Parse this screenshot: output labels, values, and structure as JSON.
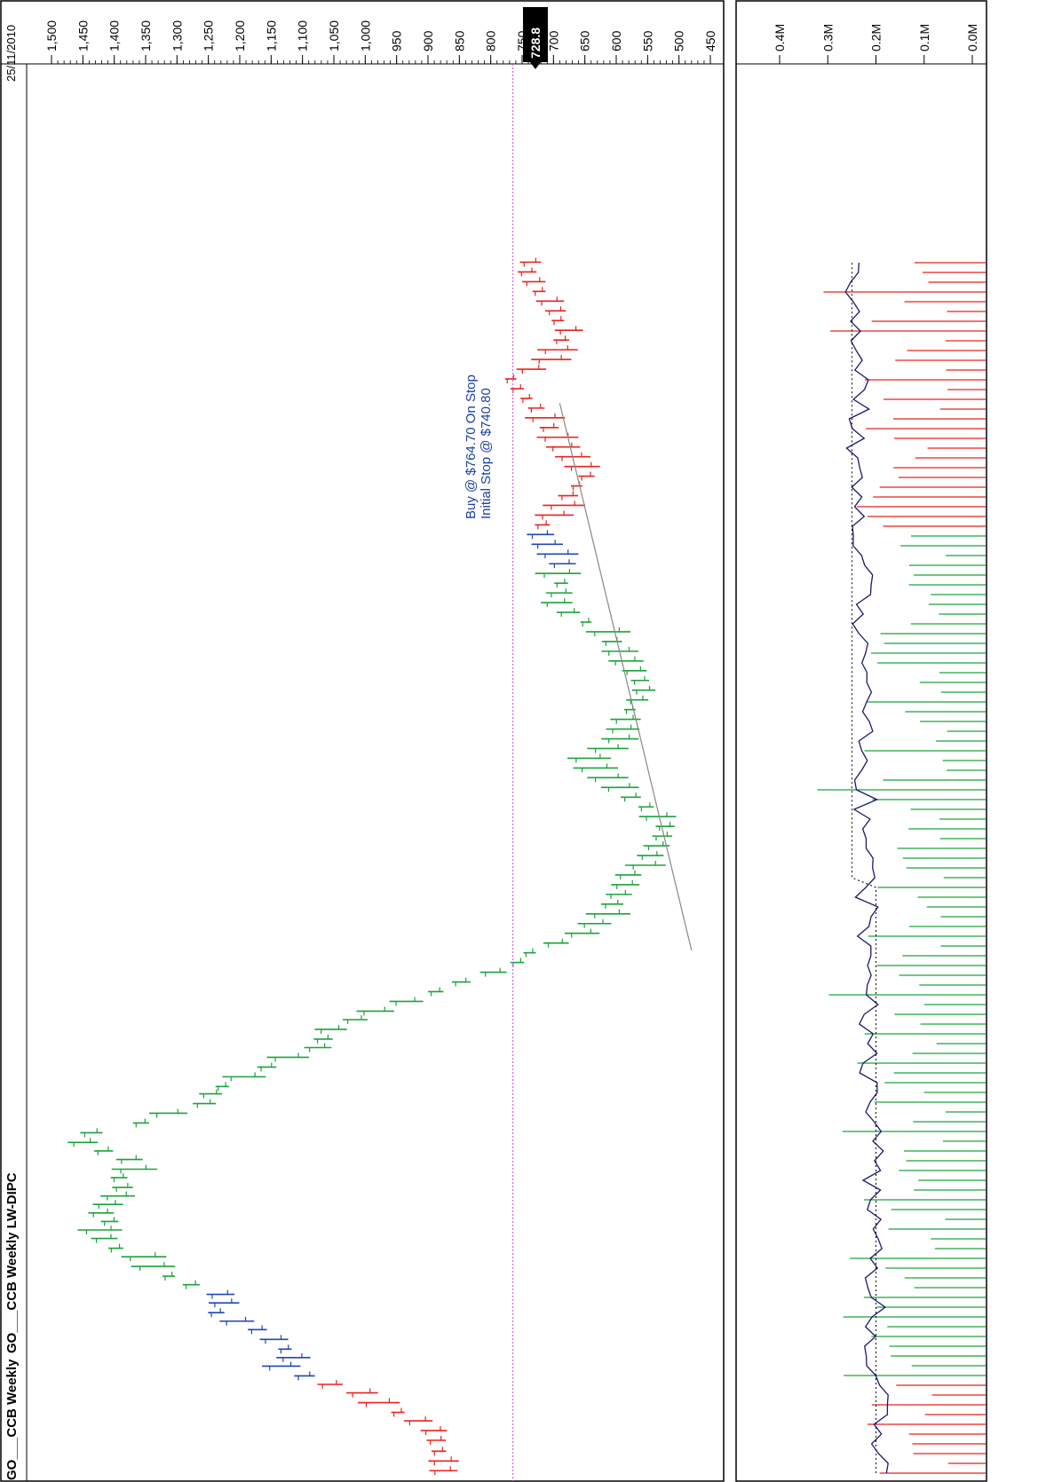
{
  "window": {
    "title_left": "GO___CCB Weekly",
    "title_right": "GO___CCB Weekly LW-DIPC",
    "date_label": "25/11/2010"
  },
  "annotation": {
    "line1": "Buy @ $764.70 On Stop",
    "line2": "Initial Stop @ $740.80"
  },
  "last_price_badge": "728.8",
  "colors": {
    "up": "#1aa33a",
    "down": "#e8231c",
    "neutral": "#1f47b5",
    "volume_ma": "#1a1a6e",
    "trendline": "#888888",
    "stop_line": "#d04fd0"
  },
  "chart_data": [
    {
      "type": "bar",
      "rotated": true,
      "price_axis": {
        "min": 450,
        "max": 1500,
        "tick_labels": [
          "1,500",
          "1,450",
          "1,400",
          "1,350",
          "1,300",
          "1,250",
          "1,200",
          "1,150",
          "1,100",
          "1,050",
          "1,000",
          "950",
          "900",
          "850",
          "800",
          "750",
          "700",
          "650",
          "600",
          "550",
          "500",
          "450"
        ],
        "ticks": [
          1500,
          1450,
          1400,
          1350,
          1300,
          1250,
          1200,
          1150,
          1100,
          1050,
          1000,
          950,
          900,
          850,
          800,
          750,
          700,
          650,
          600,
          550,
          500,
          450
        ]
      },
      "last_price": 728.8,
      "stop_level": 764.7,
      "trendline": {
        "from": [
          0.43,
          480
        ],
        "to": [
          0.88,
          690
        ]
      },
      "series": [
        {
          "color_key": "down",
          "segment": "early",
          "points": [
            [
              0.002,
              880
            ],
            [
              0.01,
              880
            ],
            [
              0.018,
              885
            ],
            [
              0.027,
              890
            ],
            [
              0.035,
              895
            ],
            [
              0.043,
              920
            ],
            [
              0.05,
              950
            ],
            [
              0.058,
              985
            ],
            [
              0.066,
              1010
            ],
            [
              0.073,
              1060
            ]
          ]
        },
        {
          "color_key": "neutral",
          "segment": "early-mid",
          "points": [
            [
              0.08,
              1100
            ],
            [
              0.088,
              1140
            ],
            [
              0.095,
              1120
            ],
            [
              0.102,
              1130
            ],
            [
              0.11,
              1150
            ],
            [
              0.118,
              1175
            ],
            [
              0.125,
              1210
            ],
            [
              0.132,
              1240
            ],
            [
              0.14,
              1230
            ],
            [
              0.147,
              1235
            ]
          ]
        },
        {
          "color_key": "up",
          "segment": "peak",
          "points": [
            [
              0.155,
              1280
            ],
            [
              0.162,
              1315
            ],
            [
              0.17,
              1345
            ],
            [
              0.178,
              1360
            ],
            [
              0.185,
              1400
            ],
            [
              0.193,
              1420
            ],
            [
              0.2,
              1430
            ],
            [
              0.207,
              1410
            ],
            [
              0.214,
              1425
            ],
            [
              0.221,
              1415
            ],
            [
              0.228,
              1400
            ],
            [
              0.235,
              1390
            ],
            [
              0.243,
              1395
            ],
            [
              0.25,
              1375
            ],
            [
              0.258,
              1380
            ],
            [
              0.265,
              1420
            ],
            [
              0.272,
              1455
            ],
            [
              0.28,
              1440
            ]
          ]
        },
        {
          "color_key": "up",
          "segment": "decline",
          "points": [
            [
              0.288,
              1360
            ],
            [
              0.296,
              1320
            ],
            [
              0.304,
              1260
            ],
            [
              0.312,
              1250
            ],
            [
              0.318,
              1230
            ],
            [
              0.326,
              1200
            ],
            [
              0.334,
              1160
            ],
            [
              0.342,
              1130
            ],
            [
              0.35,
              1080
            ],
            [
              0.357,
              1070
            ],
            [
              0.365,
              1060
            ],
            [
              0.373,
              1020
            ],
            [
              0.38,
              990
            ],
            [
              0.388,
              940
            ],
            [
              0.396,
              890
            ],
            [
              0.404,
              850
            ],
            [
              0.412,
              800
            ],
            [
              0.42,
              760
            ],
            [
              0.428,
              740
            ]
          ]
        },
        {
          "color_key": "up",
          "segment": "trough",
          "points": [
            [
              0.436,
              700
            ],
            [
              0.444,
              660
            ],
            [
              0.452,
              640
            ],
            [
              0.46,
              620
            ],
            [
              0.468,
              610
            ],
            [
              0.476,
              600
            ],
            [
              0.484,
              590
            ],
            [
              0.492,
              585
            ],
            [
              0.5,
              560
            ],
            [
              0.508,
              550
            ],
            [
              0.516,
              540
            ],
            [
              0.524,
              530
            ],
            [
              0.532,
              525
            ],
            [
              0.54,
              540
            ],
            [
              0.548,
              555
            ],
            [
              0.556,
              580
            ],
            [
              0.564,
              600
            ],
            [
              0.572,
              620
            ],
            [
              0.58,
              640
            ],
            [
              0.588,
              650
            ],
            [
              0.596,
              620
            ],
            [
              0.604,
              600
            ],
            [
              0.612,
              595
            ],
            [
              0.62,
              590
            ],
            [
              0.628,
              580
            ],
            [
              0.636,
              570
            ],
            [
              0.644,
              560
            ],
            [
              0.652,
              565
            ],
            [
              0.66,
              575
            ],
            [
              0.668,
              590
            ],
            [
              0.676,
              600
            ],
            [
              0.684,
              610
            ],
            [
              0.692,
              620
            ],
            [
              0.7,
              650
            ],
            [
              0.708,
              680
            ],
            [
              0.716,
              700
            ],
            [
              0.724,
              695
            ],
            [
              0.732,
              690
            ],
            [
              0.74,
              700
            ]
          ]
        },
        {
          "color_key": "neutral",
          "segment": "transition",
          "points": [
            [
              0.748,
              690
            ],
            [
              0.756,
              700
            ],
            [
              0.764,
              715
            ],
            [
              0.772,
              725
            ]
          ]
        },
        {
          "color_key": "down",
          "segment": "late",
          "points": [
            [
              0.78,
              720
            ],
            [
              0.788,
              705
            ],
            [
              0.796,
              690
            ],
            [
              0.804,
              680
            ],
            [
              0.812,
              665
            ],
            [
              0.82,
              650
            ],
            [
              0.828,
              660
            ],
            [
              0.836,
              675
            ],
            [
              0.844,
              690
            ],
            [
              0.852,
              700
            ],
            [
              0.86,
              710
            ],
            [
              0.868,
              720
            ],
            [
              0.876,
              730
            ],
            [
              0.884,
              745
            ],
            [
              0.892,
              760
            ],
            [
              0.9,
              770
            ],
            [
              0.908,
              740
            ],
            [
              0.916,
              710
            ],
            [
              0.924,
              700
            ],
            [
              0.932,
              690
            ],
            [
              0.94,
              680
            ],
            [
              0.948,
              695
            ],
            [
              0.956,
              700
            ],
            [
              0.964,
              710
            ],
            [
              0.972,
              725
            ],
            [
              0.98,
              735
            ],
            [
              0.988,
              745
            ],
            [
              0.996,
              740
            ]
          ]
        }
      ]
    },
    {
      "type": "bar",
      "rotated": true,
      "volume_axis": {
        "min": 0,
        "max": 0.45,
        "tick_labels": [
          "0.4M",
          "0.3M",
          "0.2M",
          "0.1M",
          "0.0M"
        ],
        "ticks": [
          0.4,
          0.3,
          0.2,
          0.1,
          0.0
        ]
      },
      "series": [
        {
          "name": "",
          "kind": "volume",
          "values_note": "weekly volumes in millions"
        }
      ]
    }
  ]
}
